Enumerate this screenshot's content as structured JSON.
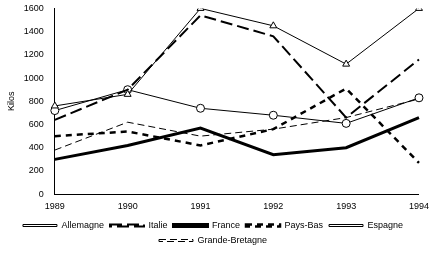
{
  "chart_data": {
    "type": "line",
    "y_label": "Kilos",
    "categories": [
      "1989",
      "1990",
      "1991",
      "1992",
      "1993",
      "1994"
    ],
    "series": [
      {
        "name": "Allemagne",
        "color": "#000000",
        "marker": "triangle",
        "line_style": "solid",
        "values": [
          760,
          860,
          1600,
          1450,
          1120,
          1600
        ]
      },
      {
        "name": "Italie",
        "color": "#000000",
        "marker": "none",
        "line_style": "longdash",
        "values": [
          640,
          900,
          1540,
          1360,
          660,
          1160
        ]
      },
      {
        "name": "France",
        "color": "#000000",
        "marker": "none",
        "line_style": "thick",
        "values": [
          300,
          420,
          570,
          340,
          400,
          660
        ]
      },
      {
        "name": "Pays-Bas",
        "color": "#000000",
        "marker": "none",
        "line_style": "thickdash",
        "values": [
          500,
          540,
          420,
          560,
          910,
          270
        ]
      },
      {
        "name": "Espagne",
        "color": "#000000",
        "marker": "circle",
        "line_style": "solid",
        "values": [
          720,
          900,
          740,
          680,
          610,
          830
        ]
      },
      {
        "name": "Grande-Bretagne",
        "color": "#000000",
        "marker": "none",
        "line_style": "dash",
        "values": [
          380,
          620,
          500,
          560,
          660,
          820
        ]
      }
    ],
    "ylim": [
      0,
      1600
    ],
    "yticks": [
      0,
      200,
      400,
      600,
      800,
      1000,
      1200,
      1400,
      1600
    ],
    "grid": false,
    "legend": "bottom"
  }
}
